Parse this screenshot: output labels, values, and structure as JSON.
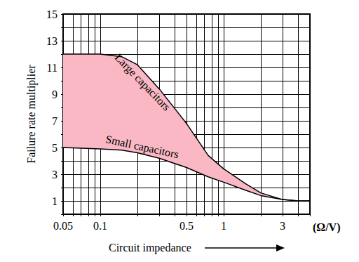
{
  "chart_data": {
    "type": "line",
    "y_label": "Failure rate multiplier",
    "x_label": "Circuit impedance",
    "x_unit": "(Ω/V)",
    "x": [
      0.05,
      0.1,
      0.15,
      0.2,
      0.3,
      0.5,
      0.75,
      1,
      1.5,
      2,
      3,
      4,
      5
    ],
    "series": [
      {
        "name": "Large capacitors",
        "color": "#000000",
        "values": [
          12,
          12,
          11.8,
          11.2,
          9.4,
          6.8,
          4.4,
          3.4,
          2.3,
          1.6,
          1.1,
          1,
          1
        ]
      },
      {
        "name": "Small capacitors",
        "color": "#000000",
        "values": [
          5,
          4.9,
          4.8,
          4.6,
          4.2,
          3.5,
          2.8,
          2.4,
          1.8,
          1.4,
          1.1,
          1,
          1
        ]
      }
    ],
    "color": "#f9b8c4",
    "xlim": [
      0.05,
      5
    ],
    "xticks": [
      0.05,
      0.1,
      0.5,
      1,
      3
    ],
    "ylim": [
      0,
      15
    ],
    "yticks": [
      1,
      3,
      5,
      7,
      9,
      11,
      13,
      15
    ],
    "log": "x",
    "grid": true
  }
}
